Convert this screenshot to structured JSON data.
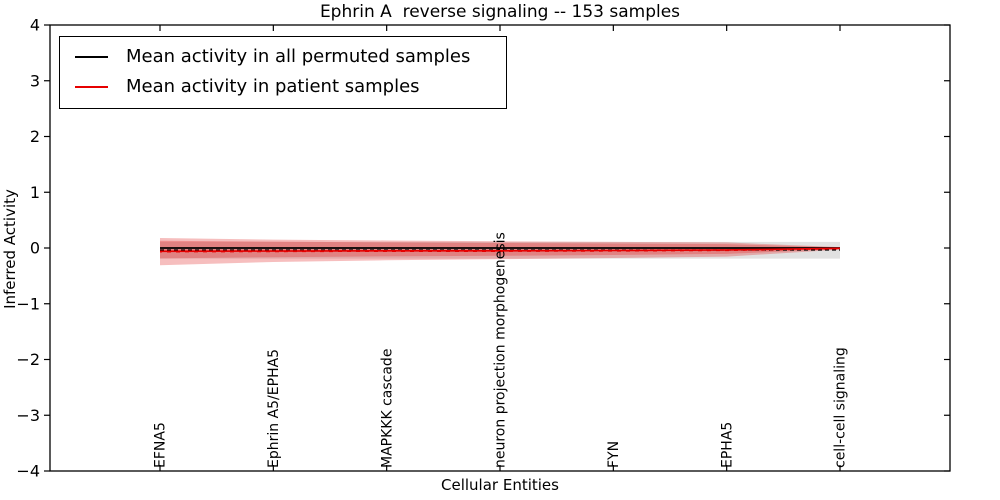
{
  "chart_data": {
    "type": "line",
    "title": "Ephrin A  reverse signaling -- 153 samples",
    "xlabel": "Cellular Entities",
    "ylabel": "Inferred Activity",
    "ylim": [
      -4,
      4
    ],
    "yticks": [
      4,
      3,
      2,
      1,
      0,
      -1,
      -2,
      -3,
      -4
    ],
    "grid": false,
    "legend_position": "upper left",
    "x_tick_label_rotation": "vertical",
    "categories": [
      "EFNA5",
      "Ephrin A5/EPHA5",
      "MAPKKK cascade",
      "neuron projection morphogenesis",
      "FYN",
      "EPHA5",
      "cell-cell signaling"
    ],
    "series": [
      {
        "name": "Mean activity in all permuted samples",
        "color": "#000000",
        "style": "solid-with-dashes",
        "values": [
          0,
          0,
          0,
          0,
          0,
          0,
          0
        ]
      },
      {
        "name": "Mean activity in patient samples",
        "color": "#e60000",
        "style": "solid-with-dashes",
        "values": [
          -0.06,
          -0.055,
          -0.05,
          -0.05,
          -0.045,
          -0.035,
          -0.005
        ]
      }
    ],
    "bands": [
      {
        "name": "permuted-samples-spread",
        "color": "rgba(105,105,105,0.20)",
        "upper": [
          0.11,
          0.11,
          0.11,
          0.11,
          0.11,
          0.11,
          0.11
        ],
        "lower": [
          -0.19,
          -0.19,
          -0.19,
          -0.19,
          -0.19,
          -0.19,
          -0.19
        ]
      },
      {
        "name": "patient-samples-outer-spread",
        "color": "rgba(225,40,40,0.30)",
        "upper": [
          0.18,
          0.15,
          0.135,
          0.12,
          0.11,
          0.1,
          0.015
        ],
        "lower": [
          -0.31,
          -0.25,
          -0.22,
          -0.2,
          -0.18,
          -0.155,
          -0.03
        ]
      },
      {
        "name": "patient-samples-inner-spread",
        "color": "rgba(225,40,40,0.30)",
        "upper": [
          0.13,
          0.115,
          0.1,
          0.09,
          0.08,
          0.07,
          0.01
        ],
        "lower": [
          -0.185,
          -0.165,
          -0.15,
          -0.14,
          -0.125,
          -0.105,
          -0.02
        ]
      }
    ]
  }
}
